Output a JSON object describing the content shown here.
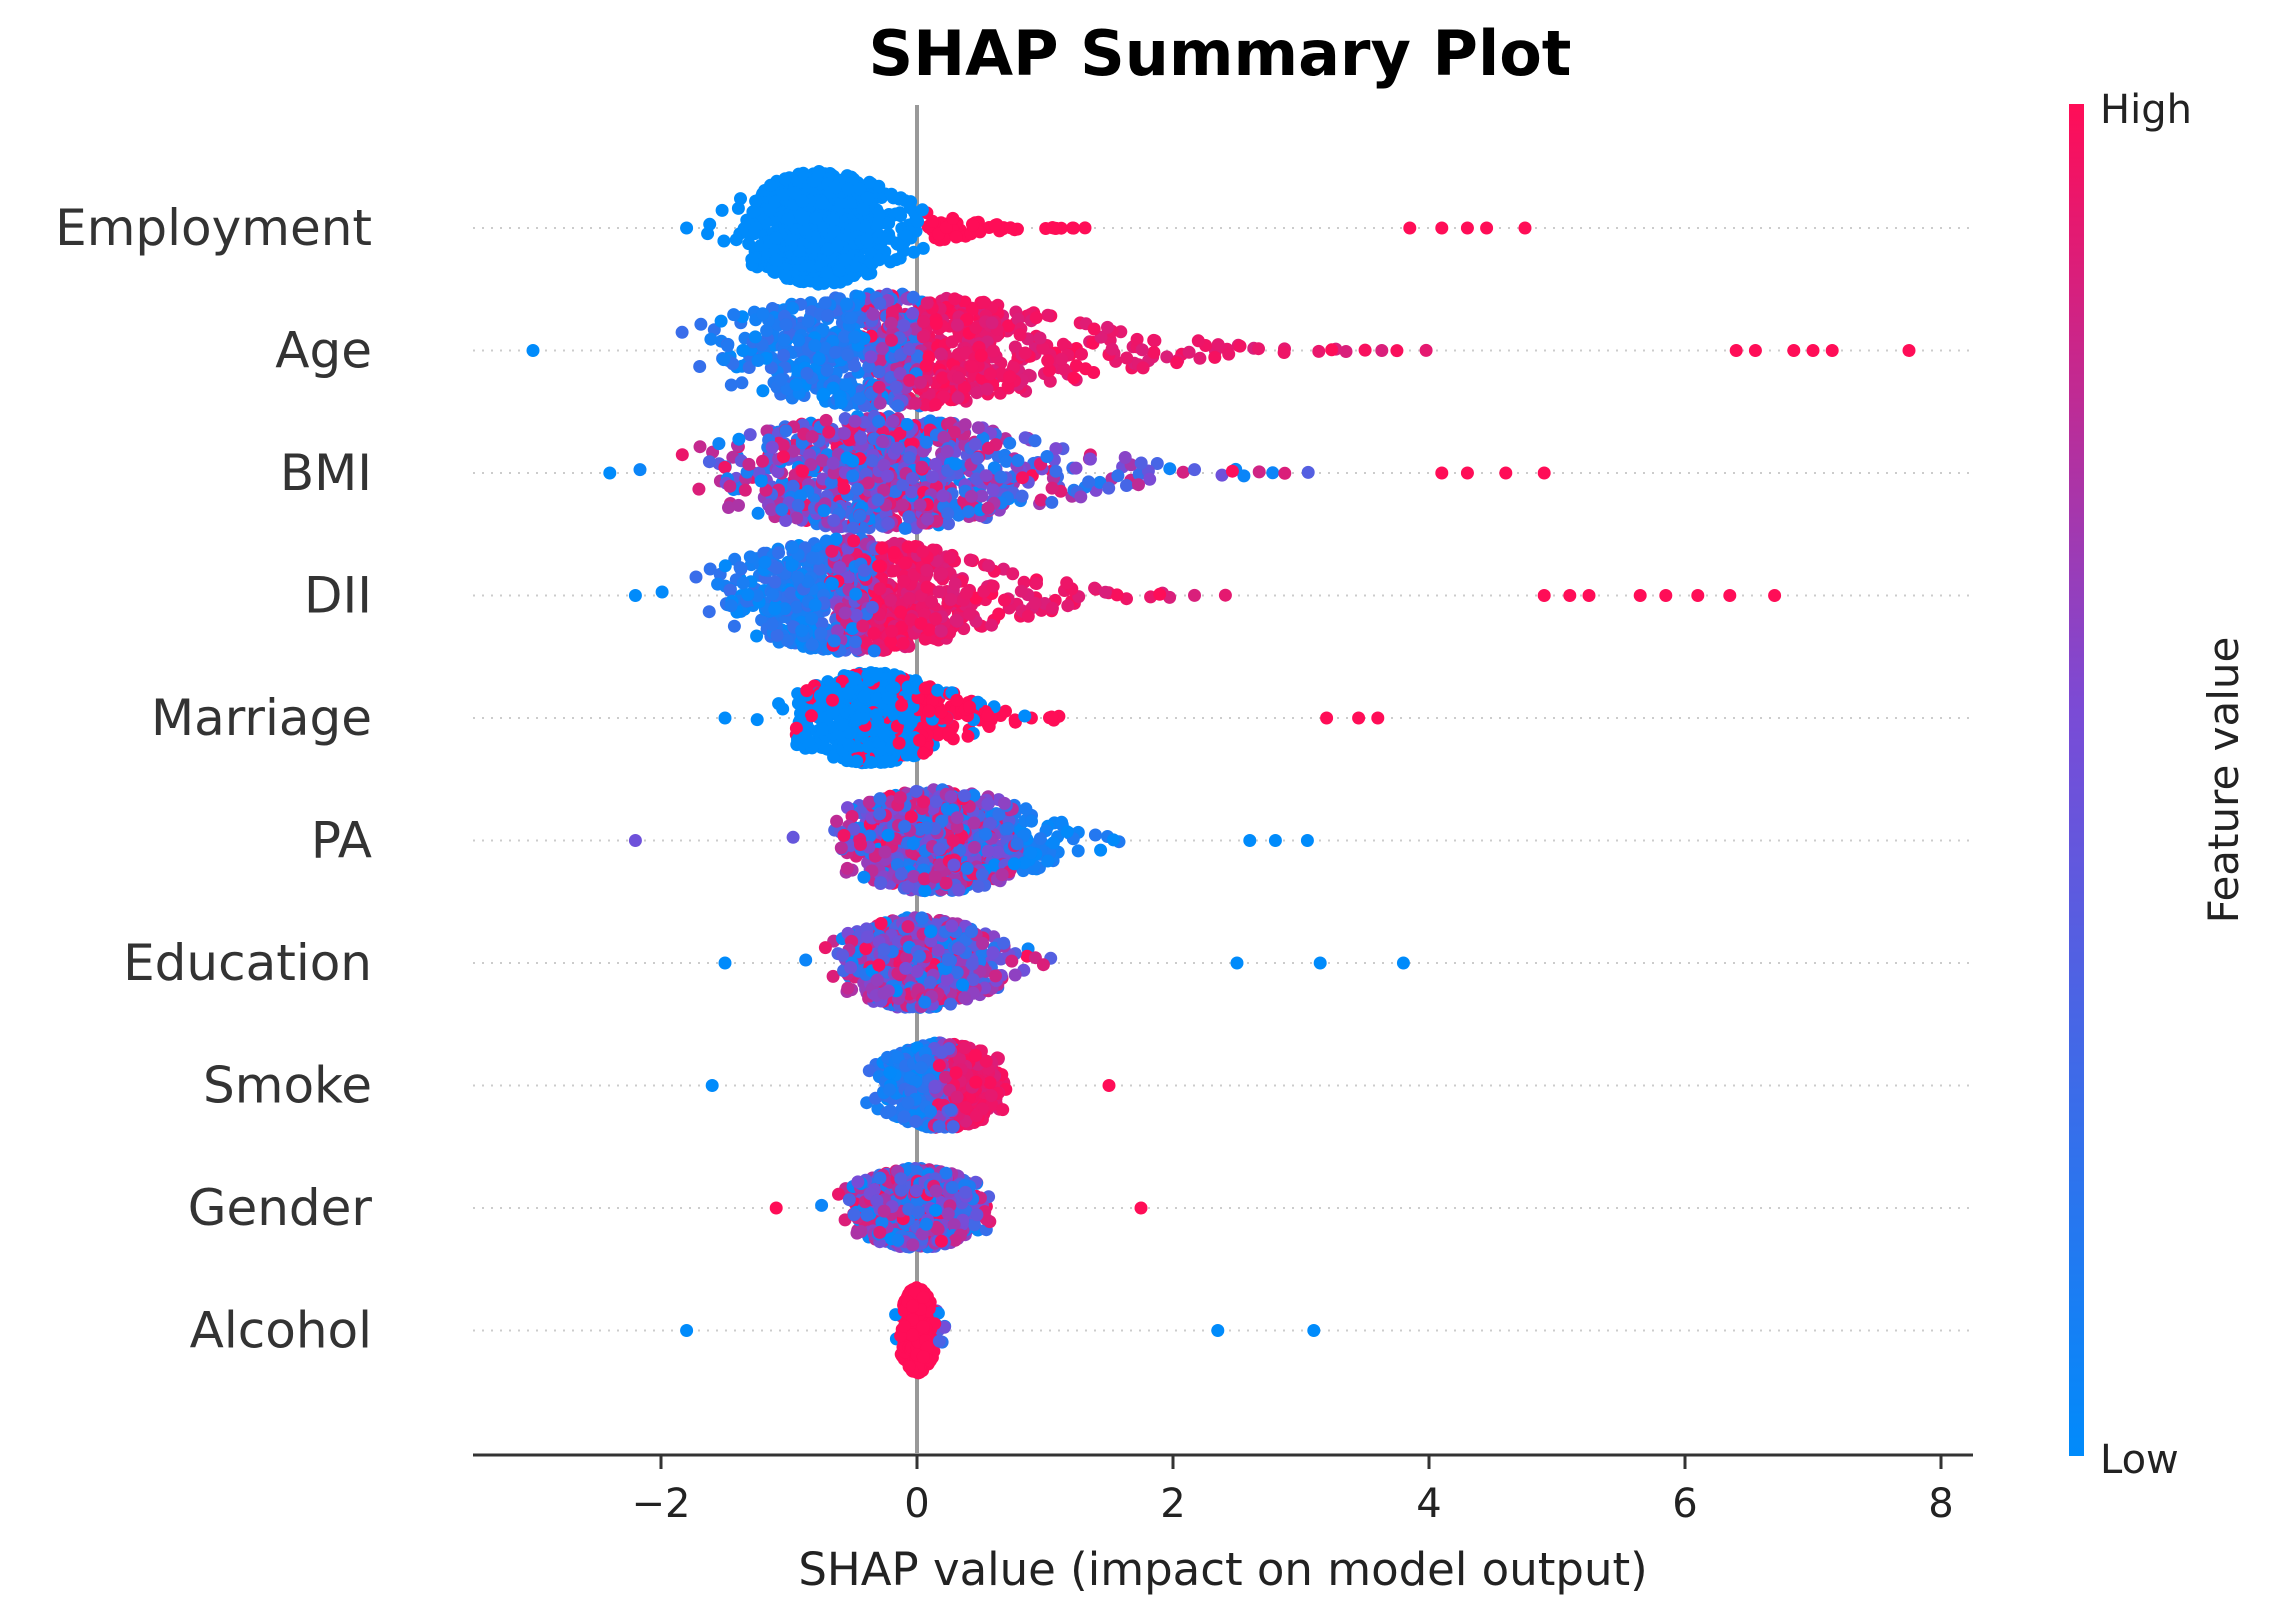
{
  "chart_data": {
    "type": "scatter",
    "subtype": "beeswarm",
    "title": "SHAP Summary Plot",
    "xlabel": "SHAP value (impact on model output)",
    "ylabel": "",
    "xlim": [
      -3.5,
      8.2
    ],
    "xticks": [
      -2,
      0,
      2,
      4,
      6,
      8
    ],
    "xtick_labels": [
      "−2",
      "0",
      "2",
      "4",
      "6",
      "8"
    ],
    "reference_line_x": 0,
    "grid": false,
    "colorbar": {
      "label": "Feature value",
      "high_label": "High",
      "low_label": "Low",
      "high_color": "#ff0d57",
      "low_color": "#008bfb"
    },
    "features": [
      {
        "name": "Employment",
        "min": -1.8,
        "max": 4.75,
        "outliers": [
          3.85,
          4.1,
          4.3,
          4.45,
          4.75
        ]
      },
      {
        "name": "Age",
        "min": -3.0,
        "max": 7.75,
        "outliers": [
          6.4,
          6.55,
          6.85,
          7.0,
          7.15,
          7.75
        ]
      },
      {
        "name": "BMI",
        "min": -2.4,
        "max": 4.9,
        "outliers": [
          4.1,
          4.3,
          4.6,
          4.9
        ]
      },
      {
        "name": "DII",
        "min": -2.2,
        "max": 6.7,
        "outliers": [
          4.9,
          5.1,
          5.25,
          5.65,
          5.85,
          6.1,
          6.35,
          6.7
        ]
      },
      {
        "name": "Marriage",
        "min": -1.5,
        "max": 3.6,
        "outliers": [
          3.2,
          3.45,
          3.6
        ]
      },
      {
        "name": "PA",
        "min": -2.2,
        "max": 3.05,
        "outliers": [
          2.6,
          2.8,
          3.05
        ]
      },
      {
        "name": "Education",
        "min": -1.5,
        "max": 3.8,
        "outliers": [
          2.5,
          3.15,
          3.8
        ]
      },
      {
        "name": "Smoke",
        "min": -1.6,
        "max": 1.5,
        "outliers": [
          1.5
        ]
      },
      {
        "name": "Gender",
        "min": -1.1,
        "max": 1.75,
        "outliers": [
          1.75
        ]
      },
      {
        "name": "Alcohol",
        "min": -1.8,
        "max": 3.1,
        "outliers": [
          2.35,
          3.1
        ]
      }
    ]
  }
}
